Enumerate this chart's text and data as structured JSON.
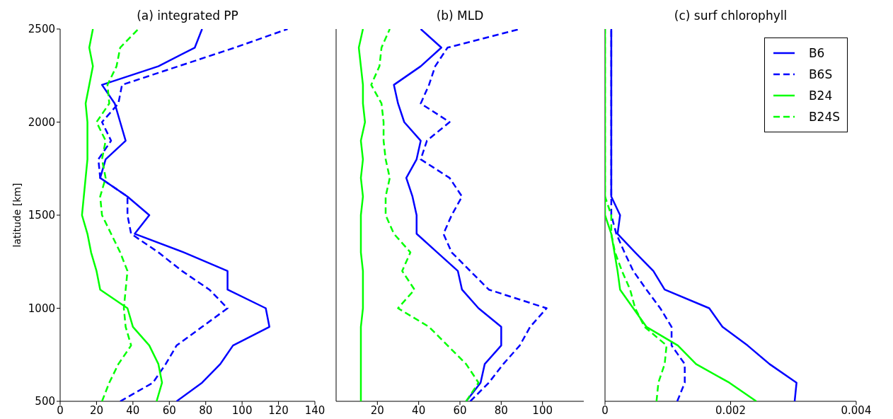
{
  "chart_data": [
    {
      "type": "line",
      "orientation": "horizontal",
      "title": "(a) integrated PP",
      "ylabel": "latitude [km]",
      "xlim": [
        0,
        140
      ],
      "xticks": [
        0,
        20,
        40,
        60,
        80,
        100,
        120,
        140
      ],
      "ylim": [
        500,
        2500
      ],
      "yticks": [
        500,
        1000,
        1500,
        2000,
        2500
      ],
      "x": [
        500,
        600,
        700,
        800,
        900,
        1000,
        1100,
        1200,
        1300,
        1400,
        1500,
        1600,
        1700,
        1800,
        1900,
        2000,
        2100,
        2200,
        2300,
        2400,
        2500
      ],
      "series": [
        {
          "color": "#0000ff",
          "line_style": "solid",
          "values": [
            64,
            78,
            88,
            95,
            115,
            113,
            92,
            92,
            68,
            41,
            49,
            37,
            22,
            25,
            36,
            33,
            30,
            23,
            54,
            74,
            78
          ]
        },
        {
          "color": "#0000ff",
          "line_style": "dashed",
          "values": [
            33,
            51,
            58,
            64,
            78,
            92,
            82,
            67,
            54,
            39,
            37,
            37,
            22,
            21,
            28,
            23,
            32,
            34,
            65,
            96,
            125
          ]
        },
        {
          "color": "#00ff00",
          "line_style": "solid",
          "values": [
            53,
            56,
            54,
            49,
            40,
            37,
            22,
            20,
            17,
            15,
            12,
            13,
            14,
            15,
            15,
            15,
            14,
            16,
            18,
            16,
            18
          ]
        },
        {
          "color": "#00ff00",
          "line_style": "dashed",
          "values": [
            23,
            27,
            32,
            39,
            36,
            35,
            36,
            37,
            33,
            28,
            23,
            22,
            25,
            23,
            25,
            20,
            27,
            26,
            31,
            33,
            43
          ]
        }
      ]
    },
    {
      "type": "line",
      "orientation": "horizontal",
      "title": "(b) MLD",
      "xlim": [
        0,
        120
      ],
      "xticks": [
        20,
        40,
        60,
        80,
        100
      ],
      "ylim": [
        500,
        2500
      ],
      "yticks": [
        500,
        1000,
        1500,
        2000,
        2500
      ],
      "tick_labels": "x",
      "x": [
        500,
        600,
        700,
        800,
        900,
        1000,
        1100,
        1200,
        1300,
        1400,
        1500,
        1600,
        1700,
        1800,
        1900,
        2000,
        2100,
        2200,
        2300,
        2400,
        2500
      ],
      "series": [
        {
          "color": "#0000ff",
          "line_style": "solid",
          "values": [
            63,
            70,
            72,
            80,
            80,
            69,
            61,
            59,
            49,
            39,
            39,
            37,
            34,
            39,
            41,
            33,
            30,
            28,
            41,
            51,
            41
          ]
        },
        {
          "color": "#0000ff",
          "line_style": "dashed",
          "values": [
            65,
            74,
            81,
            89,
            94,
            102,
            74,
            65,
            56,
            52,
            56,
            61,
            55,
            41,
            44,
            55,
            41,
            45,
            48,
            54,
            89
          ]
        },
        {
          "color": "#00ff00",
          "line_style": "solid",
          "values": [
            12,
            12,
            12,
            12,
            12,
            13,
            13,
            13,
            12,
            12,
            12,
            13,
            12,
            13,
            12,
            14,
            13,
            13,
            12,
            11,
            13
          ]
        },
        {
          "color": "#00ff00",
          "line_style": "dashed",
          "values": [
            63,
            69,
            63,
            54,
            45,
            30,
            38,
            32,
            36,
            28,
            24,
            24,
            26,
            24,
            23,
            23,
            22,
            17,
            21,
            22,
            26
          ]
        }
      ]
    },
    {
      "type": "line",
      "orientation": "horizontal",
      "title": "(c) surf chlorophyll",
      "xlim": [
        0,
        0.004
      ],
      "xticks": [
        0,
        0.002,
        0.004
      ],
      "ylim": [
        500,
        2500
      ],
      "yticks": [
        500,
        1000,
        1500,
        2000,
        2500
      ],
      "tick_labels": "x",
      "legend": "top right",
      "x": [
        500,
        600,
        700,
        800,
        900,
        1000,
        1100,
        1200,
        1300,
        1400,
        1500,
        1600,
        1700,
        1800,
        1900,
        2000,
        2100,
        2200,
        2300,
        2400,
        2500
      ],
      "series": [
        {
          "name": "B6",
          "color": "#0000ff",
          "line_style": "solid",
          "values": [
            0.00302,
            0.00305,
            0.00262,
            0.00227,
            0.00187,
            0.00166,
            0.00095,
            0.00077,
            0.00048,
            0.0002,
            0.00024,
            0.0001,
            0.0001,
            0.0001,
            0.0001,
            0.0001,
            0.0001,
            0.0001,
            0.0001,
            0.0001,
            0.0001
          ]
        },
        {
          "name": "B6S",
          "color": "#0000ff",
          "line_style": "dashed",
          "values": [
            0.00115,
            0.00127,
            0.00127,
            0.00106,
            0.00106,
            0.00088,
            0.00066,
            0.00045,
            0.00031,
            0.00018,
            0.0001,
            0.0001,
            0.0001,
            0.0001,
            0.0001,
            0.0001,
            0.0001,
            0.0001,
            0.0001,
            0.0001,
            0.0001
          ]
        },
        {
          "name": "B24",
          "color": "#00ff00",
          "line_style": "solid",
          "values": [
            0.00241,
            0.00198,
            0.00145,
            0.00116,
            0.00066,
            0.00045,
            0.00024,
            0.0002,
            0.00015,
            0.0001,
            0,
            0,
            0,
            0,
            0,
            0,
            0,
            0,
            0,
            0,
            0
          ]
        },
        {
          "name": "B24S",
          "color": "#00ff00",
          "line_style": "dashed",
          "values": [
            0.00082,
            0.00085,
            0.00095,
            0.00098,
            0.00063,
            0.00048,
            0.0004,
            0.00027,
            0.00016,
            0.0001,
            0.0001,
            0,
            0,
            0,
            0,
            0,
            0,
            0,
            0,
            0,
            0
          ]
        }
      ]
    }
  ]
}
